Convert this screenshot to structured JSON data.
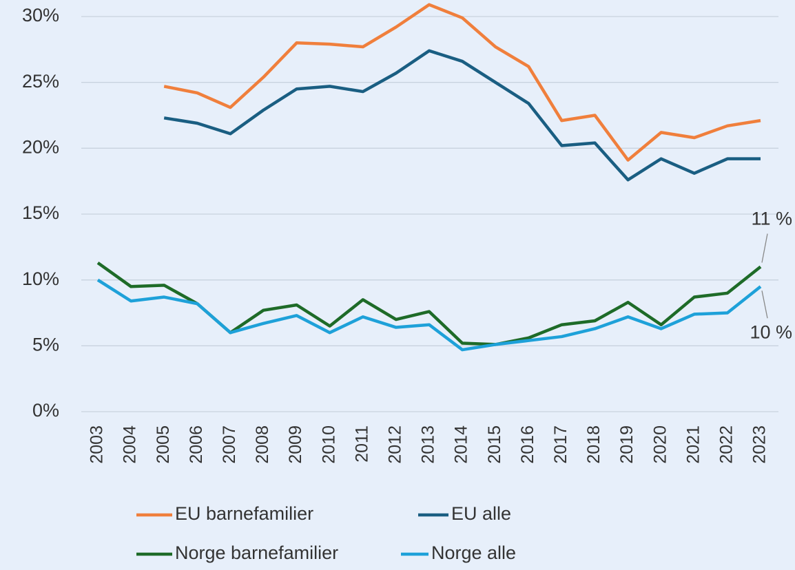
{
  "chart_data": {
    "type": "line",
    "categories": [
      "2003",
      "2004",
      "2005",
      "2006",
      "2007",
      "2008",
      "2009",
      "2010",
      "2011",
      "2012",
      "2013",
      "2014",
      "2015",
      "2016",
      "2017",
      "2018",
      "2019",
      "2020",
      "2021",
      "2022",
      "2023"
    ],
    "ylim": [
      0,
      30
    ],
    "yticks": [
      {
        "value": 0,
        "label": "0%"
      },
      {
        "value": 5,
        "label": "5%"
      },
      {
        "value": 10,
        "label": "10%"
      },
      {
        "value": 15,
        "label": "15%"
      },
      {
        "value": 20,
        "label": "20%"
      },
      {
        "value": 25,
        "label": "25%"
      },
      {
        "value": 30,
        "label": "30%"
      }
    ],
    "grid": true,
    "series": [
      {
        "name": "EU barnefamilier",
        "color": "#f07f3c",
        "values": [
          null,
          null,
          24.7,
          24.2,
          23.1,
          25.4,
          28.0,
          27.9,
          27.7,
          29.2,
          30.9,
          29.9,
          27.7,
          26.2,
          22.1,
          22.5,
          19.1,
          21.2,
          20.8,
          21.7,
          22.1
        ]
      },
      {
        "name": "EU alle",
        "color": "#1a5e82",
        "values": [
          null,
          null,
          22.3,
          21.9,
          21.1,
          22.9,
          24.5,
          24.7,
          24.3,
          25.7,
          27.4,
          26.6,
          25.0,
          23.4,
          20.2,
          20.4,
          17.6,
          19.2,
          18.1,
          19.2,
          19.2
        ]
      },
      {
        "name": "Norge barnefamilier",
        "color": "#1e6b28",
        "values": [
          11.3,
          9.5,
          9.6,
          8.2,
          6.0,
          7.7,
          8.1,
          6.5,
          8.5,
          7.0,
          7.6,
          5.2,
          5.1,
          5.6,
          6.6,
          6.9,
          8.3,
          6.6,
          8.7,
          9.0,
          11.0
        ],
        "value_labels": [
          null,
          null,
          null,
          null,
          null,
          null,
          null,
          null,
          null,
          null,
          null,
          null,
          null,
          null,
          null,
          null,
          null,
          null,
          null,
          null,
          "11 %"
        ]
      },
      {
        "name": "Norge alle",
        "color": "#1ea1d9",
        "values": [
          10.0,
          8.4,
          8.7,
          8.2,
          6.0,
          6.7,
          7.3,
          6.0,
          7.2,
          6.4,
          6.6,
          4.7,
          5.1,
          5.4,
          5.7,
          6.3,
          7.2,
          6.3,
          7.4,
          7.5,
          9.5
        ],
        "value_labels": [
          null,
          null,
          null,
          null,
          null,
          null,
          null,
          null,
          null,
          null,
          null,
          null,
          null,
          null,
          null,
          null,
          null,
          null,
          null,
          null,
          "10 %"
        ]
      }
    ]
  }
}
